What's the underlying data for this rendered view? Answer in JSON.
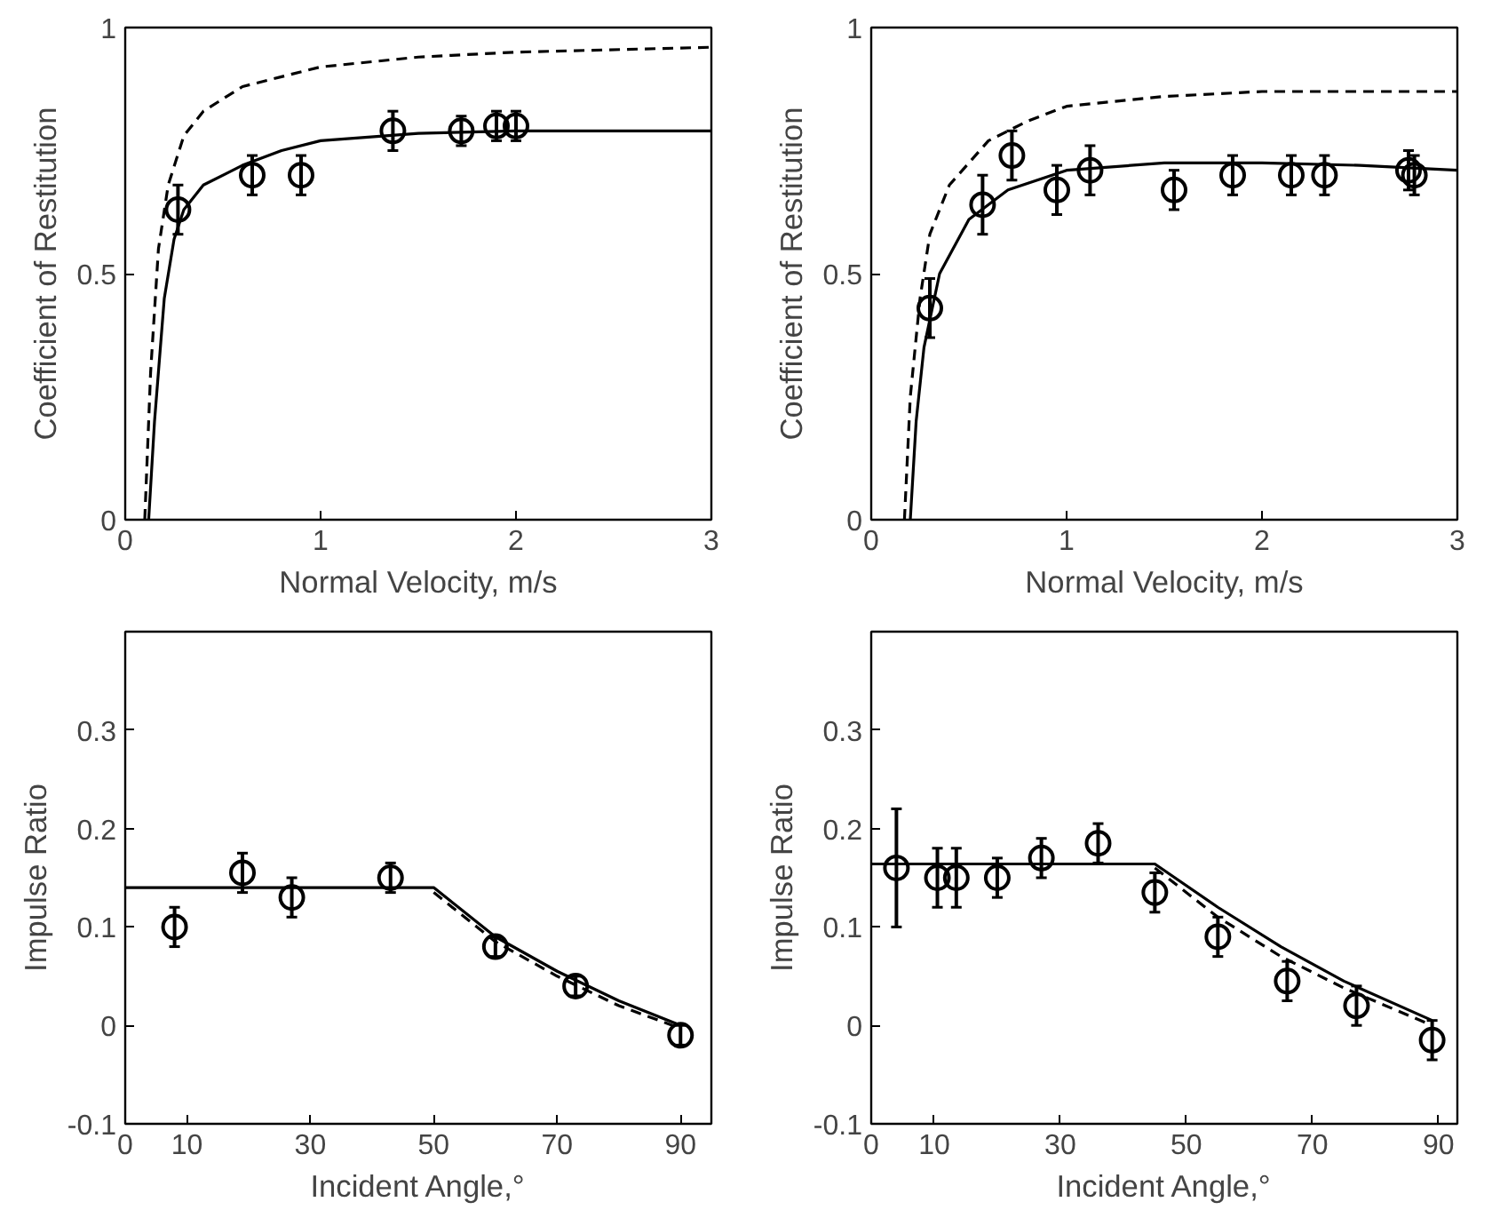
{
  "chart_data": [
    {
      "type": "scatter",
      "xlabel": "Normal Velocity, m/s",
      "ylabel": "Coefficient of Restitution",
      "xlim": [
        0,
        3
      ],
      "ylim": [
        0,
        1
      ],
      "xticks": [
        0,
        1,
        2,
        3
      ],
      "yticks": [
        0,
        0.5,
        1
      ],
      "grid": false,
      "series": [
        {
          "marker": "circle",
          "color": "#000000",
          "x": [
            0.27,
            0.65,
            0.9,
            1.37,
            1.72,
            1.9,
            2.0
          ],
          "values": [
            0.63,
            0.7,
            0.7,
            0.79,
            0.79,
            0.8,
            0.8
          ],
          "errors": [
            0.05,
            0.04,
            0.04,
            0.04,
            0.03,
            0.03,
            0.03
          ]
        },
        {
          "type": "line",
          "marker": "none",
          "line_style": "solid",
          "color": "#000000",
          "x": [
            0.12,
            0.15,
            0.2,
            0.25,
            0.3,
            0.4,
            0.6,
            0.8,
            1.0,
            1.5,
            2.0,
            3.0
          ],
          "values": [
            0,
            0.2,
            0.45,
            0.57,
            0.63,
            0.68,
            0.72,
            0.75,
            0.77,
            0.785,
            0.79,
            0.79
          ]
        },
        {
          "type": "line",
          "marker": "none",
          "line_style": "dashed",
          "color": "#000000",
          "x": [
            0.1,
            0.13,
            0.17,
            0.22,
            0.3,
            0.4,
            0.6,
            0.8,
            1.0,
            1.5,
            2.0,
            3.0
          ],
          "values": [
            0,
            0.3,
            0.55,
            0.68,
            0.78,
            0.83,
            0.88,
            0.9,
            0.92,
            0.94,
            0.95,
            0.96
          ]
        }
      ]
    },
    {
      "type": "scatter",
      "xlabel": "Normal Velocity, m/s",
      "ylabel": "Coefficient of Restitution",
      "xlim": [
        0,
        3
      ],
      "ylim": [
        0,
        1
      ],
      "xticks": [
        0,
        1,
        2,
        3
      ],
      "yticks": [
        0,
        0.5,
        1
      ],
      "grid": false,
      "series": [
        {
          "marker": "circle",
          "color": "#000000",
          "x": [
            0.3,
            0.57,
            0.72,
            0.95,
            1.12,
            1.55,
            1.85,
            2.15,
            2.32,
            2.75,
            2.78
          ],
          "values": [
            0.43,
            0.64,
            0.74,
            0.67,
            0.71,
            0.67,
            0.7,
            0.7,
            0.7,
            0.71,
            0.7
          ],
          "errors": [
            0.06,
            0.06,
            0.05,
            0.05,
            0.05,
            0.04,
            0.04,
            0.04,
            0.04,
            0.04,
            0.04
          ]
        },
        {
          "type": "line",
          "marker": "none",
          "line_style": "solid",
          "color": "#000000",
          "x": [
            0.2,
            0.23,
            0.27,
            0.35,
            0.5,
            0.7,
            1.0,
            1.5,
            2.0,
            2.5,
            3.0
          ],
          "values": [
            0,
            0.2,
            0.35,
            0.5,
            0.61,
            0.67,
            0.71,
            0.725,
            0.725,
            0.72,
            0.71
          ]
        },
        {
          "type": "line",
          "marker": "none",
          "line_style": "dashed",
          "color": "#000000",
          "x": [
            0.17,
            0.2,
            0.25,
            0.3,
            0.4,
            0.6,
            0.8,
            1.0,
            1.5,
            2.0,
            3.0
          ],
          "values": [
            0,
            0.25,
            0.45,
            0.58,
            0.68,
            0.77,
            0.81,
            0.84,
            0.86,
            0.87,
            0.87
          ]
        }
      ]
    },
    {
      "type": "scatter",
      "xlabel": "Incident Angle,°",
      "ylabel": "Impulse Ratio",
      "xlim": [
        0,
        95
      ],
      "ylim": [
        -0.1,
        0.4
      ],
      "xticks": [
        0,
        10,
        30,
        50,
        70,
        90
      ],
      "yticks": [
        -0.1,
        0,
        0.1,
        0.2,
        0.3
      ],
      "grid": false,
      "series": [
        {
          "marker": "circle",
          "color": "#000000",
          "x": [
            8,
            19,
            27,
            43,
            60,
            73,
            90
          ],
          "values": [
            0.1,
            0.155,
            0.13,
            0.15,
            0.08,
            0.04,
            -0.01
          ],
          "errors": [
            0.02,
            0.02,
            0.02,
            0.015,
            0.01,
            0.01,
            0.01
          ]
        },
        {
          "type": "line",
          "marker": "none",
          "line_style": "solid",
          "color": "#000000",
          "x": [
            0,
            50,
            60,
            70,
            80,
            90
          ],
          "values": [
            0.14,
            0.14,
            0.09,
            0.055,
            0.025,
            0
          ]
        },
        {
          "type": "line",
          "marker": "none",
          "line_style": "dashed",
          "color": "#000000",
          "x": [
            50,
            60,
            70,
            80,
            90
          ],
          "values": [
            0.135,
            0.085,
            0.05,
            0.02,
            -0.003
          ]
        }
      ]
    },
    {
      "type": "scatter",
      "xlabel": "Incident Angle,°",
      "ylabel": "Impulse Ratio",
      "xlim": [
        0,
        93
      ],
      "ylim": [
        -0.1,
        0.4
      ],
      "xticks": [
        0,
        10,
        30,
        50,
        70,
        90
      ],
      "yticks": [
        -0.1,
        0,
        0.1,
        0.2,
        0.3
      ],
      "grid": false,
      "series": [
        {
          "marker": "circle",
          "color": "#000000",
          "x": [
            4,
            10.5,
            13.5,
            20,
            27,
            36,
            45,
            55,
            66,
            77,
            89
          ],
          "values": [
            0.16,
            0.15,
            0.15,
            0.15,
            0.17,
            0.185,
            0.135,
            0.09,
            0.045,
            0.02,
            -0.015
          ],
          "errors": [
            0.06,
            0.03,
            0.03,
            0.02,
            0.02,
            0.02,
            0.02,
            0.02,
            0.02,
            0.02,
            0.02
          ]
        },
        {
          "type": "line",
          "marker": "none",
          "line_style": "solid",
          "color": "#000000",
          "x": [
            0,
            45,
            55,
            65,
            75,
            89
          ],
          "values": [
            0.164,
            0.164,
            0.12,
            0.08,
            0.045,
            0.005
          ]
        },
        {
          "type": "line",
          "marker": "none",
          "line_style": "dashed",
          "color": "#000000",
          "x": [
            45,
            55,
            65,
            75,
            89
          ],
          "values": [
            0.16,
            0.11,
            0.07,
            0.038,
            0.0
          ]
        }
      ]
    }
  ]
}
